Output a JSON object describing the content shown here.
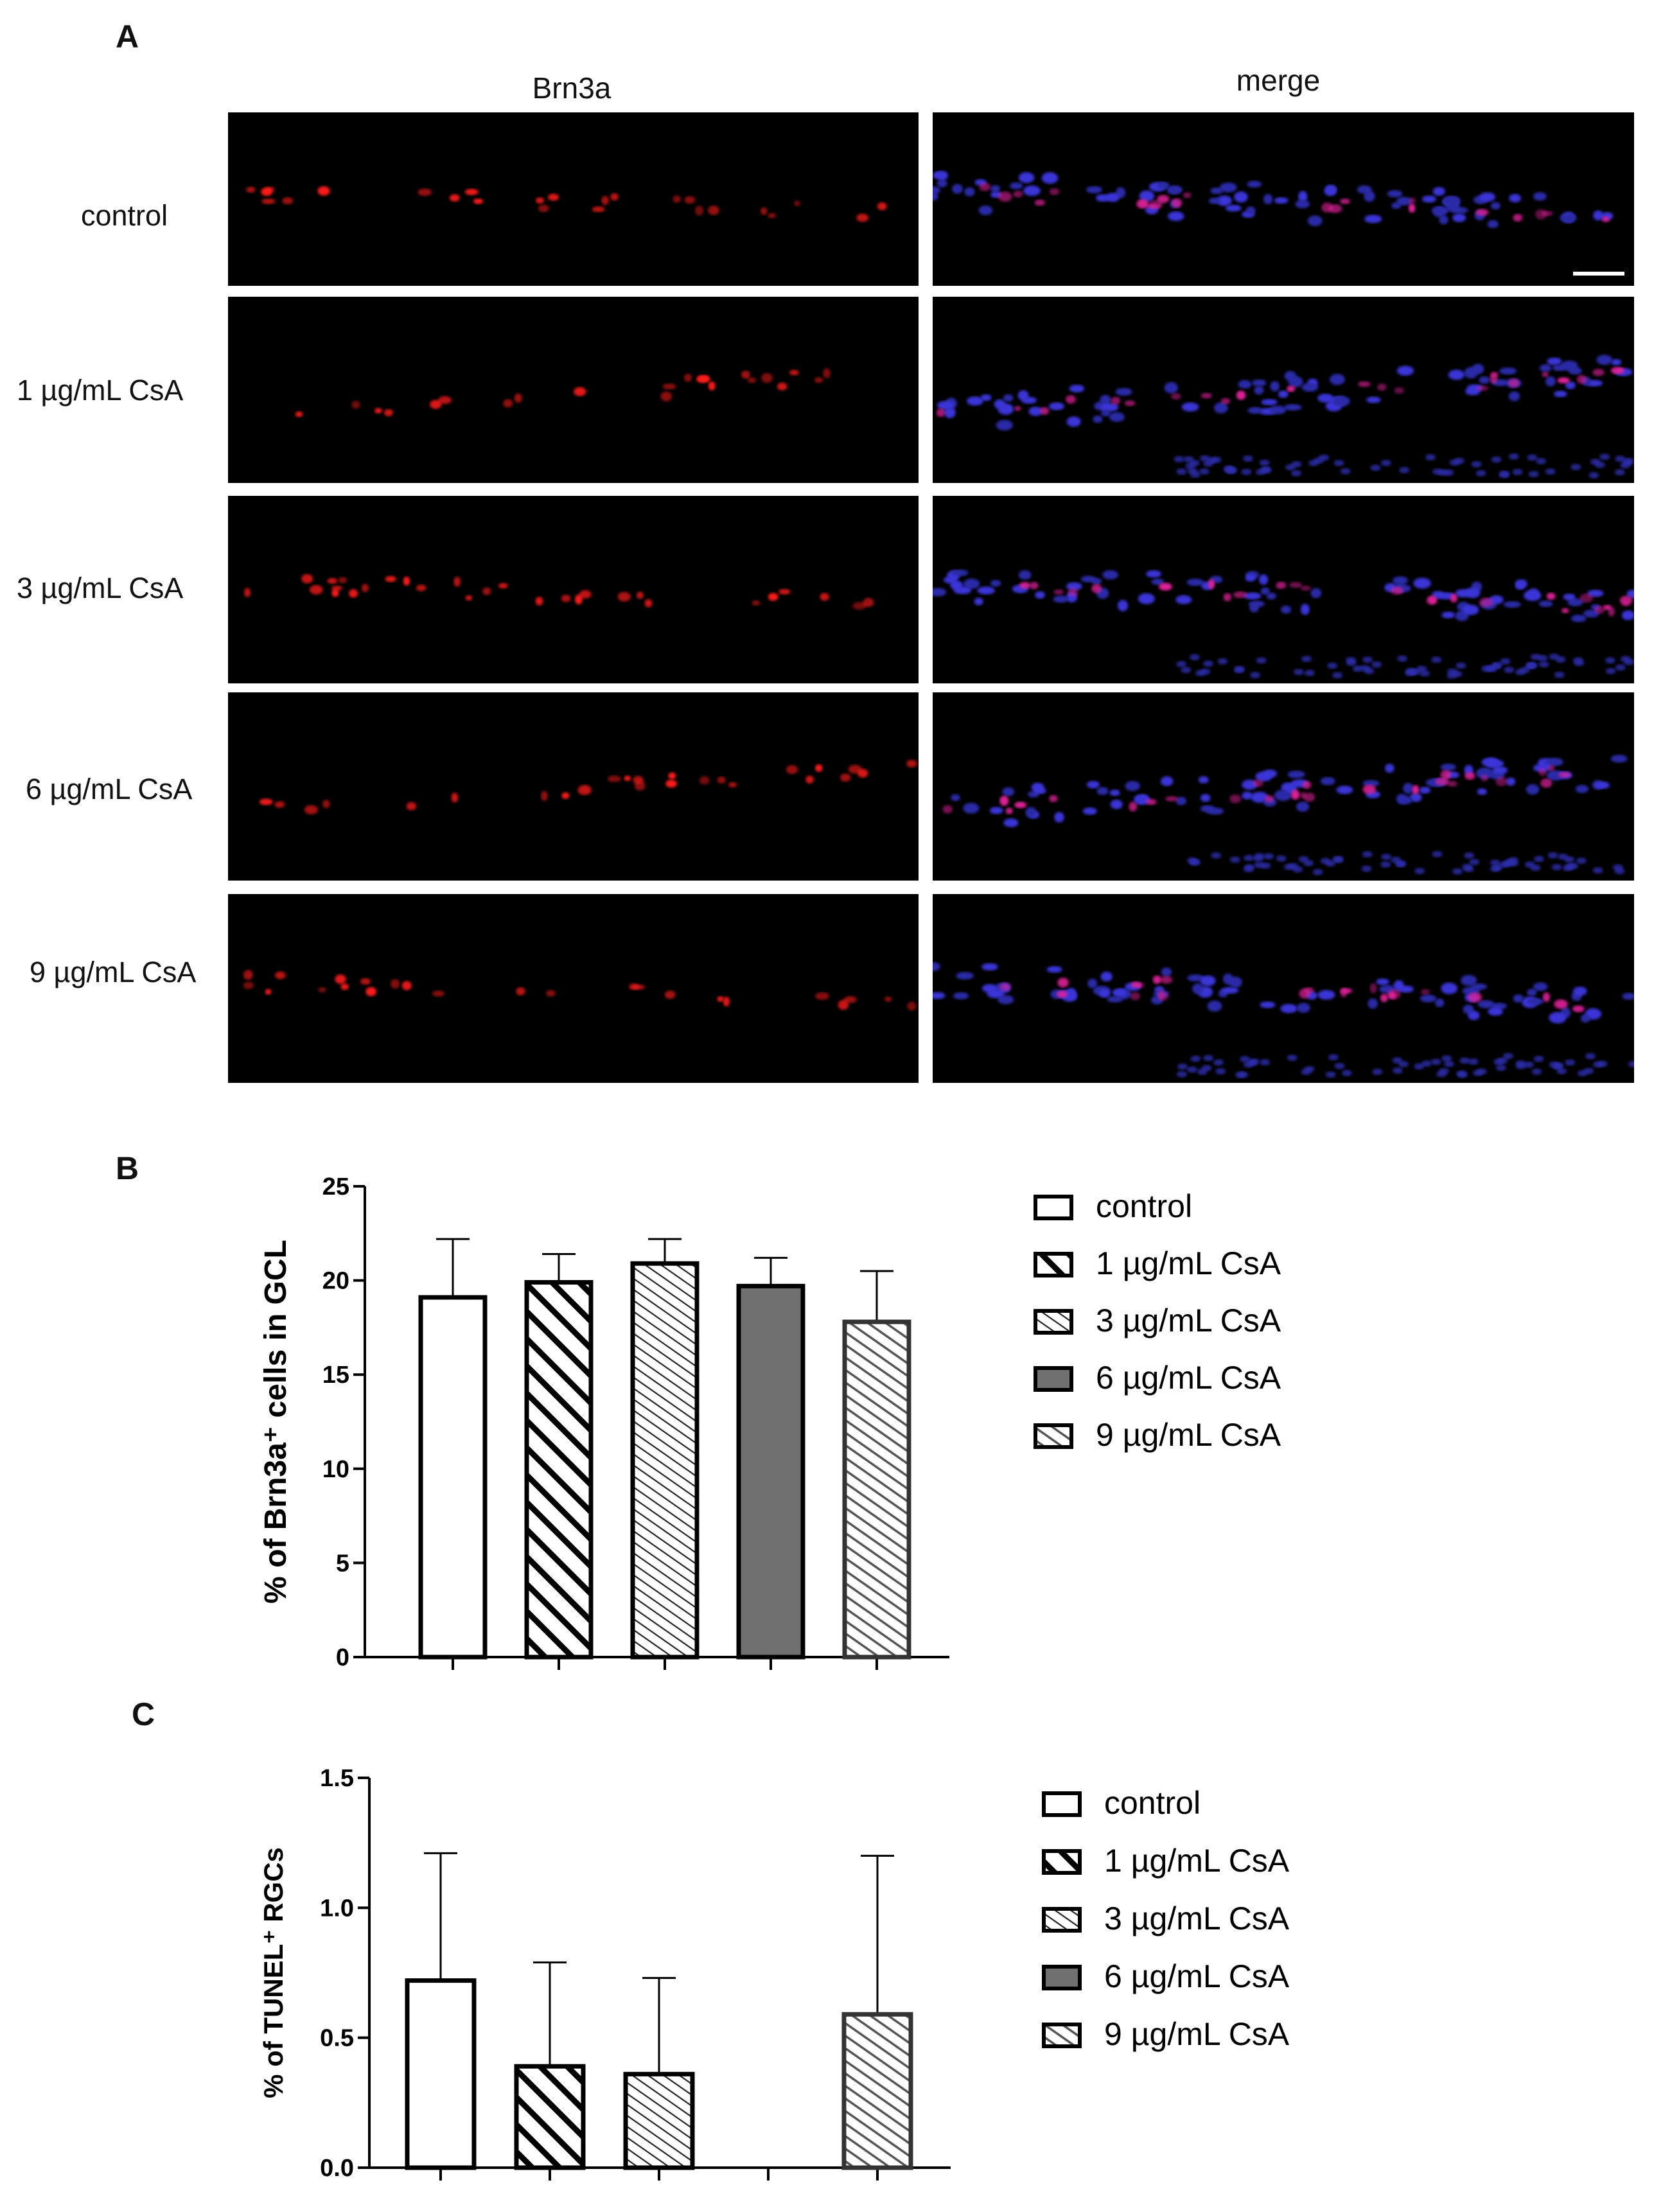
{
  "panelA": {
    "letter": "A",
    "columns": [
      "Brn3a",
      "merge"
    ],
    "rows": [
      "control",
      "1 µg/mL CsA",
      "3 µg/mL CsA",
      "6 µg/mL CsA",
      "9 µg/mL CsA"
    ]
  },
  "panelB": {
    "letter": "B"
  },
  "panelC": {
    "letter": "C"
  },
  "chart_data": [
    {
      "type": "bar",
      "categories": [
        "control",
        "1 µg/mL CsA",
        "3 µg/mL CsA",
        "6 µg/mL CsA",
        "9 µg/mL CsA"
      ],
      "values": [
        19.1,
        19.9,
        20.9,
        19.7,
        17.8
      ],
      "errors": [
        3.1,
        1.5,
        1.3,
        1.5,
        2.7
      ],
      "ylabel": "% of Brn3a⁺ cells in GCL",
      "ylim": [
        0,
        25
      ],
      "yticks": [
        0,
        5,
        10,
        15,
        20,
        25
      ],
      "legend": [
        "control",
        "1 µg/mL CsA",
        "3 µg/mL CsA",
        "6 µg/mL CsA",
        "9 µg/mL CsA"
      ],
      "legend_position": "right",
      "fills": [
        "white",
        "wide-hatch",
        "fine-hatch",
        "#6f706f",
        "light-hatch"
      ]
    },
    {
      "type": "bar",
      "categories": [
        "control",
        "1 µg/mL CsA",
        "3 µg/mL CsA",
        "6 µg/mL CsA",
        "9 µg/mL CsA"
      ],
      "values": [
        0.72,
        0.39,
        0.36,
        0,
        0.59
      ],
      "errors": [
        0.49,
        0.4,
        0.37,
        0,
        0.61
      ],
      "ylabel": "% of TUNEL⁺ RGCs",
      "ylim": [
        0,
        1.5
      ],
      "yticks": [
        "0.0",
        "0.5",
        "1.0",
        "1.5"
      ],
      "legend": [
        "control",
        "1 µg/mL CsA",
        "3 µg/mL CsA",
        "6 µg/mL CsA",
        "9 µg/mL CsA"
      ],
      "legend_position": "right",
      "fills": [
        "white",
        "wide-hatch",
        "fine-hatch",
        "#6f706f",
        "light-hatch"
      ]
    }
  ]
}
